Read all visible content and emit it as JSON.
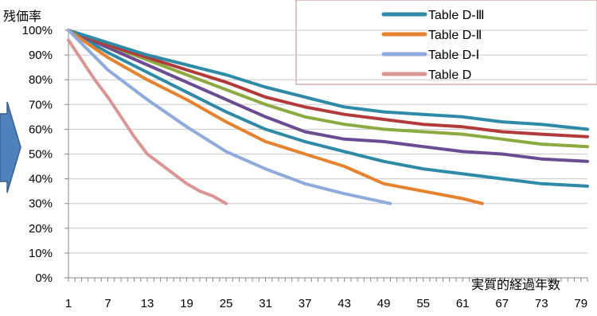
{
  "chart_data": {
    "type": "line",
    "ylabel": "残価率",
    "xlabel": "実質的経過年数",
    "ylim": [
      0,
      100
    ],
    "yticks": [
      "0%",
      "10%",
      "20%",
      "30%",
      "40%",
      "50%",
      "60%",
      "70%",
      "80%",
      "90%",
      "100%"
    ],
    "xticks": [
      "1",
      "7",
      "13",
      "19",
      "25",
      "31",
      "37",
      "43",
      "49",
      "55",
      "61",
      "67",
      "73",
      "79"
    ],
    "xlim": [
      1,
      80
    ],
    "legend_position": "top-right",
    "series": [
      {
        "name": "",
        "color": "#2E8AA6",
        "x": [
          1,
          7,
          13,
          19,
          25,
          31,
          37,
          43,
          49,
          55,
          61,
          67,
          73,
          80
        ],
        "y": [
          100,
          91,
          83,
          75,
          67,
          60,
          55,
          51,
          47,
          44,
          42,
          40,
          38,
          37
        ]
      },
      {
        "name": "",
        "color": "#6A4C93",
        "x": [
          1,
          7,
          13,
          19,
          25,
          31,
          37,
          43,
          49,
          55,
          61,
          67,
          73,
          80
        ],
        "y": [
          100,
          93,
          86,
          79,
          72,
          65,
          59,
          56,
          55,
          53,
          51,
          50,
          48,
          47
        ]
      },
      {
        "name": "",
        "color": "#8BAA3F",
        "x": [
          1,
          7,
          13,
          19,
          25,
          31,
          37,
          43,
          49,
          55,
          61,
          67,
          73,
          80
        ],
        "y": [
          100,
          94,
          88,
          82,
          76,
          70,
          65,
          62,
          60,
          59,
          58,
          56,
          54,
          53
        ]
      },
      {
        "name": "",
        "color": "#B33A3A",
        "x": [
          1,
          7,
          13,
          19,
          25,
          31,
          37,
          43,
          49,
          55,
          61,
          67,
          73,
          80
        ],
        "y": [
          100,
          94,
          89,
          84,
          79,
          73,
          69,
          66,
          64,
          62,
          61,
          59,
          58,
          57
        ]
      },
      {
        "name": "Table D-Ⅲ",
        "color": "#2E8AA6",
        "x": [
          1,
          7,
          13,
          19,
          25,
          31,
          37,
          43,
          49,
          55,
          61,
          67,
          73,
          80
        ],
        "y": [
          100,
          95,
          90,
          86,
          82,
          77,
          73,
          69,
          67,
          66,
          65,
          63,
          62,
          60
        ]
      },
      {
        "name": "Table D-Ⅱ",
        "color": "#E6822E",
        "x": [
          1,
          7,
          13,
          19,
          25,
          31,
          37,
          43,
          49,
          55,
          61,
          64
        ],
        "y": [
          100,
          89,
          80,
          72,
          63,
          55,
          50,
          45,
          38,
          35,
          32,
          30
        ]
      },
      {
        "name": "Table D-Ⅰ",
        "color": "#8FAADC",
        "x": [
          1,
          7,
          13,
          19,
          25,
          31,
          37,
          43,
          50
        ],
        "y": [
          100,
          84,
          72,
          61,
          51,
          44,
          38,
          34,
          30
        ]
      },
      {
        "name": "Table D",
        "color": "#D99694",
        "x": [
          1,
          3,
          5,
          7,
          9,
          11,
          13,
          15,
          17,
          19,
          21,
          23,
          25
        ],
        "y": [
          96,
          88,
          80,
          73,
          65,
          57,
          50,
          46,
          42,
          38,
          35,
          33,
          30
        ]
      }
    ]
  }
}
